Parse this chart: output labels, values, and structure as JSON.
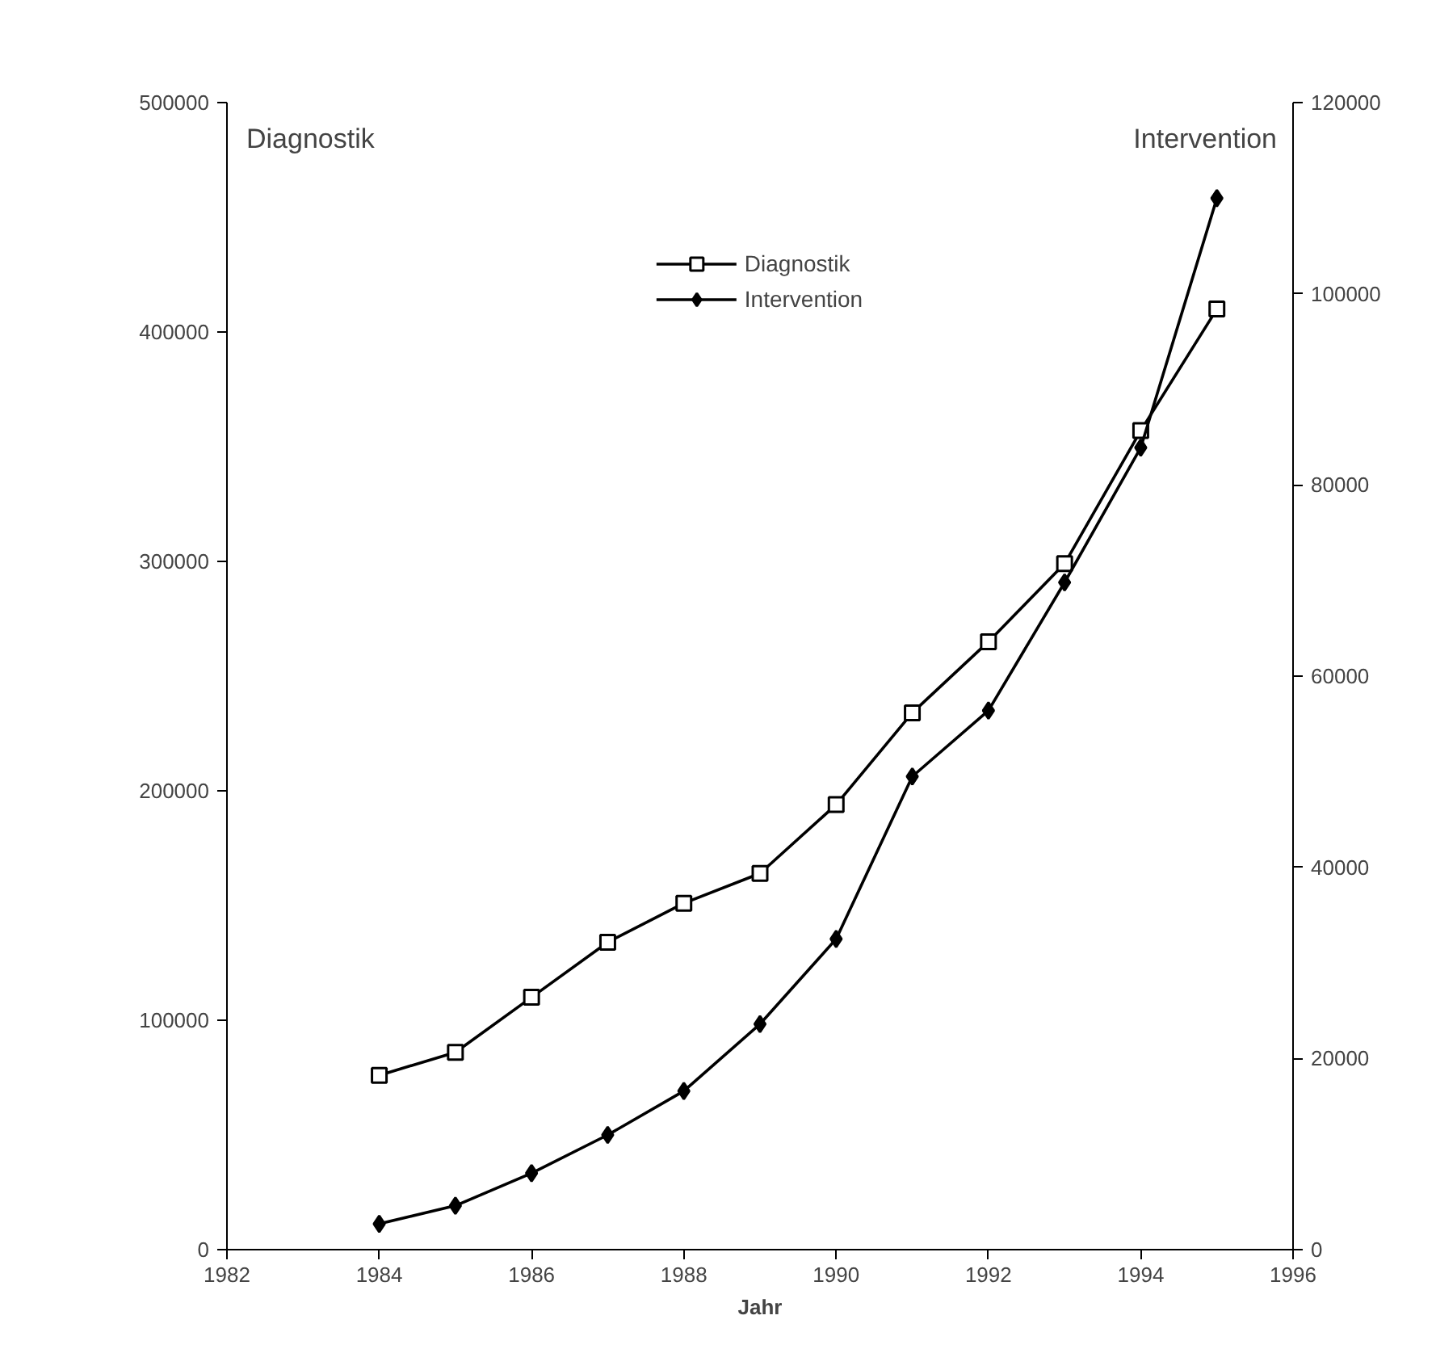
{
  "chart_data": {
    "type": "line",
    "xlabel": "Jahr",
    "ylabel": "Diagnostik",
    "y2label": "Intervention",
    "x": [
      1984,
      1985,
      1986,
      1987,
      1988,
      1989,
      1990,
      1991,
      1992,
      1993,
      1994,
      1995
    ],
    "series": [
      {
        "name": "Diagnostik",
        "color": "#000000",
        "marker": "square",
        "values": [
          76000,
          86000,
          110000,
          134000,
          151000,
          164000,
          194000,
          234000,
          265000,
          299000,
          357000,
          410000
        ]
      },
      {
        "name": "Intervention",
        "color": "#000000",
        "marker": "diamond",
        "axis": "y2",
        "values": [
          2700,
          4600,
          8000,
          12000,
          16600,
          23600,
          32500,
          49500,
          56400,
          69800,
          83900,
          110000
        ]
      }
    ],
    "xlim": [
      1982,
      1996
    ],
    "xticks": [
      1982,
      1984,
      1986,
      1988,
      1990,
      1992,
      1994,
      1996
    ],
    "ylim": [
      0,
      500000
    ],
    "yticks": [
      0,
      100000,
      200000,
      300000,
      400000,
      500000
    ],
    "y2lim": [
      0,
      120000
    ],
    "y2ticks": [
      0,
      20000,
      40000,
      60000,
      80000,
      100000,
      120000
    ],
    "legend": "top",
    "grid": false,
    "line_style": "solid"
  }
}
